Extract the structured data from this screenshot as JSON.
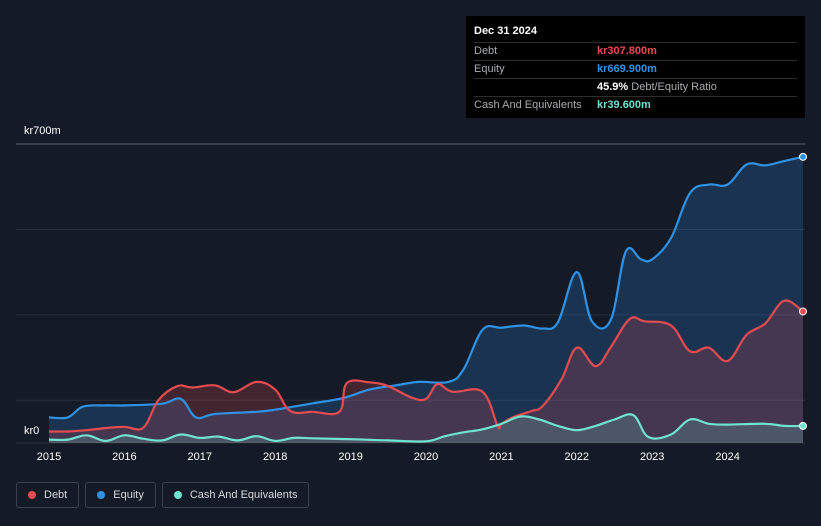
{
  "tooltip": {
    "date": "Dec 31 2024",
    "rows": [
      {
        "label": "Debt",
        "value": "kr307.800m",
        "color": "#e64b50"
      },
      {
        "label": "Equity",
        "value": "kr669.900m",
        "color": "#2e93e6"
      },
      {
        "label": "",
        "value": "45.9%",
        "extra": "Debt/Equity Ratio",
        "color": "#ffffff"
      },
      {
        "label": "Cash And Equivalents",
        "value": "kr39.600m",
        "color": "#6fe3cf"
      }
    ]
  },
  "legend": [
    {
      "label": "Debt",
      "color": "#e64b50"
    },
    {
      "label": "Equity",
      "color": "#2e93e6"
    },
    {
      "label": "Cash And Equivalents",
      "color": "#6fe3cf"
    }
  ],
  "chart_data": {
    "type": "area",
    "y_top_label": "kr700m",
    "y_bottom_label": "kr0",
    "ylim": [
      0,
      700
    ],
    "xlim": [
      2015.0,
      2025.0
    ],
    "x_ticks": [
      "2015",
      "2016",
      "2017",
      "2018",
      "2019",
      "2020",
      "2021",
      "2022",
      "2023",
      "2024"
    ],
    "series": [
      {
        "name": "Debt",
        "color": "#e64b50",
        "points": [
          [
            2015.0,
            27
          ],
          [
            2015.25,
            27
          ],
          [
            2015.5,
            30
          ],
          [
            2015.75,
            35
          ],
          [
            2016.0,
            38
          ],
          [
            2016.25,
            36
          ],
          [
            2016.45,
            100
          ],
          [
            2016.7,
            133
          ],
          [
            2016.9,
            130
          ],
          [
            2017.2,
            135
          ],
          [
            2017.45,
            119
          ],
          [
            2017.75,
            143
          ],
          [
            2018.0,
            125
          ],
          [
            2018.2,
            75
          ],
          [
            2018.5,
            73
          ],
          [
            2018.85,
            73
          ],
          [
            2018.95,
            140
          ],
          [
            2019.25,
            142
          ],
          [
            2019.5,
            133
          ],
          [
            2019.8,
            107
          ],
          [
            2020.0,
            103
          ],
          [
            2020.15,
            138
          ],
          [
            2020.35,
            120
          ],
          [
            2020.75,
            120
          ],
          [
            2020.95,
            40
          ],
          [
            2021.0,
            45
          ],
          [
            2021.15,
            60
          ],
          [
            2021.4,
            75
          ],
          [
            2021.55,
            87
          ],
          [
            2021.8,
            150
          ],
          [
            2022.0,
            223
          ],
          [
            2022.25,
            180
          ],
          [
            2022.45,
            224
          ],
          [
            2022.7,
            290
          ],
          [
            2022.9,
            285
          ],
          [
            2023.25,
            275
          ],
          [
            2023.5,
            215
          ],
          [
            2023.75,
            223
          ],
          [
            2024.0,
            192
          ],
          [
            2024.25,
            253
          ],
          [
            2024.5,
            280
          ],
          [
            2024.75,
            333
          ],
          [
            2025.0,
            308
          ]
        ]
      },
      {
        "name": "Equity",
        "color": "#2e93e6",
        "points": [
          [
            2015.0,
            60
          ],
          [
            2015.25,
            60
          ],
          [
            2015.45,
            85
          ],
          [
            2015.75,
            88
          ],
          [
            2016.0,
            88
          ],
          [
            2016.5,
            92
          ],
          [
            2016.75,
            103
          ],
          [
            2016.95,
            60
          ],
          [
            2017.2,
            68
          ],
          [
            2017.75,
            73
          ],
          [
            2018.0,
            78
          ],
          [
            2018.5,
            93
          ],
          [
            2018.9,
            105
          ],
          [
            2019.25,
            125
          ],
          [
            2019.6,
            135
          ],
          [
            2019.9,
            143
          ],
          [
            2020.3,
            143
          ],
          [
            2020.5,
            173
          ],
          [
            2020.75,
            265
          ],
          [
            2021.0,
            270
          ],
          [
            2021.3,
            275
          ],
          [
            2021.55,
            268
          ],
          [
            2021.75,
            283
          ],
          [
            2022.0,
            400
          ],
          [
            2022.2,
            285
          ],
          [
            2022.45,
            288
          ],
          [
            2022.65,
            448
          ],
          [
            2022.85,
            430
          ],
          [
            2023.0,
            430
          ],
          [
            2023.25,
            480
          ],
          [
            2023.5,
            585
          ],
          [
            2023.75,
            605
          ],
          [
            2024.0,
            605
          ],
          [
            2024.25,
            652
          ],
          [
            2024.5,
            650
          ],
          [
            2024.75,
            660
          ],
          [
            2025.0,
            670
          ]
        ]
      },
      {
        "name": "Cash And Equivalents",
        "color": "#6fe3cf",
        "points": [
          [
            2015.0,
            8
          ],
          [
            2015.25,
            8
          ],
          [
            2015.5,
            18
          ],
          [
            2015.75,
            5
          ],
          [
            2016.0,
            18
          ],
          [
            2016.25,
            10
          ],
          [
            2016.5,
            6
          ],
          [
            2016.75,
            20
          ],
          [
            2017.0,
            12
          ],
          [
            2017.25,
            15
          ],
          [
            2017.5,
            6
          ],
          [
            2017.75,
            16
          ],
          [
            2018.0,
            5
          ],
          [
            2018.25,
            12
          ],
          [
            2018.5,
            11
          ],
          [
            2019.0,
            9
          ],
          [
            2019.5,
            6
          ],
          [
            2020.0,
            4
          ],
          [
            2020.25,
            16
          ],
          [
            2020.5,
            25
          ],
          [
            2020.75,
            32
          ],
          [
            2021.0,
            45
          ],
          [
            2021.25,
            62
          ],
          [
            2021.5,
            55
          ],
          [
            2021.75,
            40
          ],
          [
            2022.0,
            30
          ],
          [
            2022.25,
            40
          ],
          [
            2022.5,
            55
          ],
          [
            2022.75,
            65
          ],
          [
            2022.95,
            14
          ],
          [
            2023.25,
            20
          ],
          [
            2023.5,
            55
          ],
          [
            2023.75,
            45
          ],
          [
            2024.0,
            43
          ],
          [
            2024.5,
            45
          ],
          [
            2024.75,
            40
          ],
          [
            2025.0,
            40
          ]
        ]
      }
    ],
    "grid": true
  }
}
